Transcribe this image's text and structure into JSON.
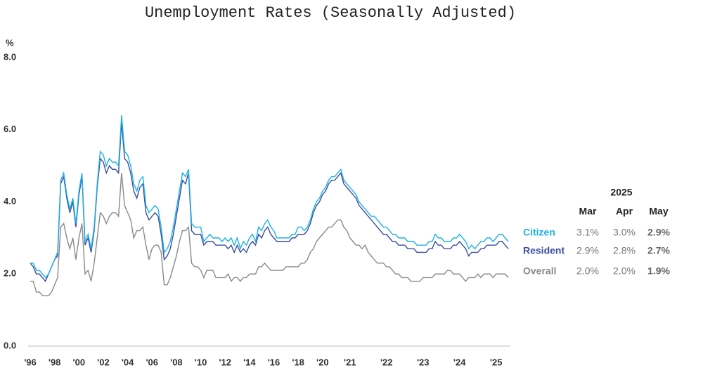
{
  "chart_data": {
    "type": "line",
    "title": "Unemployment Rates (Seasonally Adjusted)",
    "y_label": "%",
    "ylim": [
      0,
      8
    ],
    "yticks": [
      {
        "value": 0,
        "label": "0.0"
      },
      {
        "value": 2,
        "label": "2.0"
      },
      {
        "value": 4,
        "label": "4.0"
      },
      {
        "value": 6,
        "label": "6.0"
      },
      {
        "value": 8,
        "label": "8.0"
      }
    ],
    "categories": [
      "'96",
      null,
      null,
      null,
      null,
      null,
      null,
      null,
      "'98",
      null,
      null,
      null,
      null,
      null,
      null,
      null,
      "'00",
      null,
      null,
      null,
      null,
      null,
      null,
      null,
      "'02",
      null,
      null,
      null,
      null,
      null,
      null,
      null,
      "'04",
      null,
      null,
      null,
      null,
      null,
      null,
      null,
      "'06",
      null,
      null,
      null,
      null,
      null,
      null,
      null,
      "'08",
      null,
      null,
      null,
      null,
      null,
      null,
      null,
      "'10",
      null,
      null,
      null,
      null,
      null,
      null,
      null,
      "'12",
      null,
      null,
      null,
      null,
      null,
      null,
      null,
      "'14",
      null,
      null,
      null,
      null,
      null,
      null,
      null,
      "'16",
      null,
      null,
      null,
      null,
      null,
      null,
      null,
      "'18",
      null,
      null,
      null,
      null,
      null,
      null,
      null,
      "'20",
      null,
      null,
      null,
      null,
      null,
      null,
      null,
      null,
      "'21",
      null,
      null,
      null,
      null,
      null,
      null,
      null,
      null,
      null,
      null,
      null,
      "'22",
      null,
      null,
      null,
      null,
      null,
      null,
      null,
      null,
      null,
      null,
      null,
      "'23",
      null,
      null,
      null,
      null,
      null,
      null,
      null,
      null,
      null,
      null,
      null,
      "'24",
      null,
      null,
      null,
      null,
      null,
      null,
      null,
      null,
      null,
      null,
      null,
      "'25",
      null,
      null,
      null,
      null
    ],
    "series": [
      {
        "name": "Citizen",
        "color": "#1eb1e6",
        "values": [
          2.3,
          2.3,
          2.1,
          2.1,
          2.0,
          1.9,
          2.0,
          2.2,
          2.4,
          2.6,
          4.6,
          4.8,
          4.2,
          3.8,
          4.1,
          3.4,
          4.3,
          4.8,
          2.9,
          3.1,
          2.7,
          3.3,
          4.5,
          5.4,
          5.3,
          5.0,
          5.2,
          5.1,
          5.1,
          5.0,
          6.4,
          5.4,
          5.3,
          5.0,
          4.5,
          4.3,
          4.6,
          4.7,
          3.9,
          3.7,
          3.8,
          3.9,
          3.8,
          3.3,
          2.6,
          2.7,
          2.9,
          3.3,
          3.8,
          4.3,
          4.8,
          4.7,
          4.9,
          3.4,
          3.3,
          3.3,
          3.3,
          2.9,
          3.0,
          3.1,
          3.0,
          3.0,
          3.0,
          2.9,
          3.0,
          2.9,
          3.0,
          2.8,
          3.0,
          2.7,
          2.9,
          2.8,
          3.0,
          3.1,
          2.9,
          3.3,
          3.2,
          3.4,
          3.5,
          3.3,
          3.2,
          3.0,
          3.0,
          3.0,
          3.0,
          3.0,
          3.1,
          3.1,
          3.3,
          3.3,
          3.2,
          3.3,
          3.5,
          3.8,
          4.0,
          4.1,
          4.3,
          4.4,
          4.6,
          4.7,
          4.7,
          4.8,
          4.9,
          4.6,
          4.5,
          4.4,
          4.3,
          4.2,
          4.0,
          3.9,
          3.8,
          3.7,
          3.6,
          3.6,
          3.5,
          3.4,
          3.3,
          3.3,
          3.2,
          3.1,
          3.1,
          3.0,
          3.0,
          3.0,
          2.9,
          2.9,
          2.9,
          2.8,
          2.8,
          2.8,
          2.8,
          2.9,
          2.9,
          3.1,
          3.0,
          3.0,
          2.9,
          2.9,
          2.9,
          3.0,
          3.0,
          3.1,
          3.0,
          2.9,
          2.7,
          2.8,
          2.7,
          2.8,
          2.9,
          2.9,
          3.0,
          3.0,
          2.9,
          3.0,
          3.1,
          3.1,
          3.0,
          2.9
        ]
      },
      {
        "name": "Resident",
        "color": "#3a4d9f",
        "values": [
          2.3,
          2.2,
          2.0,
          2.0,
          1.9,
          1.8,
          2.0,
          2.2,
          2.4,
          2.5,
          4.5,
          4.7,
          4.1,
          3.7,
          4.0,
          3.3,
          4.2,
          4.7,
          2.8,
          3.0,
          2.6,
          3.2,
          4.4,
          5.2,
          5.1,
          4.8,
          5.0,
          4.9,
          4.9,
          4.8,
          6.2,
          5.2,
          5.1,
          4.8,
          4.3,
          4.1,
          4.4,
          4.5,
          3.7,
          3.5,
          3.6,
          3.7,
          3.6,
          3.1,
          2.4,
          2.5,
          2.7,
          3.1,
          3.6,
          4.1,
          4.6,
          4.5,
          4.8,
          3.2,
          3.1,
          3.1,
          3.1,
          2.8,
          2.9,
          2.9,
          2.9,
          2.8,
          2.8,
          2.8,
          2.8,
          2.7,
          2.8,
          2.6,
          2.8,
          2.6,
          2.7,
          2.6,
          2.8,
          2.9,
          2.8,
          3.1,
          3.0,
          3.2,
          3.3,
          3.1,
          3.0,
          2.9,
          2.9,
          2.9,
          2.9,
          2.9,
          3.0,
          3.0,
          3.1,
          3.1,
          3.1,
          3.2,
          3.4,
          3.7,
          3.9,
          4.0,
          4.2,
          4.3,
          4.5,
          4.6,
          4.6,
          4.7,
          4.8,
          4.5,
          4.4,
          4.3,
          4.2,
          4.1,
          3.9,
          3.8,
          3.7,
          3.6,
          3.5,
          3.4,
          3.3,
          3.2,
          3.1,
          3.1,
          3.0,
          2.9,
          2.9,
          2.8,
          2.8,
          2.8,
          2.7,
          2.7,
          2.7,
          2.6,
          2.6,
          2.6,
          2.6,
          2.7,
          2.7,
          2.9,
          2.8,
          2.8,
          2.7,
          2.7,
          2.7,
          2.8,
          2.8,
          2.9,
          2.8,
          2.7,
          2.5,
          2.6,
          2.6,
          2.6,
          2.7,
          2.7,
          2.8,
          2.8,
          2.8,
          2.8,
          2.9,
          2.9,
          2.8,
          2.7
        ]
      },
      {
        "name": "Overall",
        "color": "#8a8a8a",
        "values": [
          1.8,
          1.8,
          1.5,
          1.5,
          1.4,
          1.4,
          1.4,
          1.5,
          1.7,
          1.9,
          3.3,
          3.4,
          3.0,
          2.7,
          3.0,
          2.4,
          3.0,
          3.4,
          2.0,
          2.1,
          1.8,
          2.3,
          3.0,
          3.7,
          3.6,
          3.4,
          3.6,
          3.7,
          3.7,
          3.6,
          4.8,
          3.9,
          3.7,
          3.5,
          3.0,
          3.2,
          3.2,
          3.3,
          2.8,
          2.4,
          2.7,
          2.8,
          2.8,
          2.6,
          1.7,
          1.7,
          1.9,
          2.2,
          2.5,
          2.9,
          3.2,
          3.2,
          3.3,
          2.3,
          2.2,
          2.2,
          2.1,
          1.9,
          2.1,
          2.1,
          2.1,
          1.9,
          1.9,
          1.9,
          1.9,
          2.0,
          1.8,
          1.9,
          1.9,
          1.8,
          1.9,
          1.9,
          2.0,
          2.0,
          2.0,
          2.2,
          2.2,
          2.3,
          2.2,
          2.1,
          2.1,
          2.1,
          2.1,
          2.1,
          2.2,
          2.2,
          2.2,
          2.2,
          2.2,
          2.3,
          2.3,
          2.4,
          2.6,
          2.7,
          2.9,
          3.0,
          3.1,
          3.2,
          3.3,
          3.3,
          3.4,
          3.5,
          3.5,
          3.3,
          3.2,
          3.0,
          2.9,
          2.8,
          2.8,
          2.7,
          2.8,
          2.6,
          2.5,
          2.4,
          2.3,
          2.3,
          2.3,
          2.2,
          2.2,
          2.1,
          2.0,
          2.0,
          1.9,
          1.9,
          1.9,
          1.8,
          1.8,
          1.8,
          1.8,
          1.9,
          1.9,
          1.9,
          1.9,
          2.0,
          2.0,
          2.0,
          2.0,
          2.1,
          2.1,
          2.0,
          2.0,
          2.0,
          1.9,
          1.8,
          1.9,
          1.9,
          1.9,
          2.0,
          1.9,
          2.0,
          2.0,
          2.0,
          1.9,
          2.0,
          2.0,
          2.0,
          2.0,
          1.9
        ]
      }
    ],
    "table": {
      "title": "2025",
      "columns": [
        "Mar",
        "Apr",
        "May"
      ],
      "rows": [
        [
          "3.1%",
          "3.0%",
          "2.9%"
        ],
        [
          "2.9%",
          "2.8%",
          "2.7%"
        ],
        [
          "2.0%",
          "2.0%",
          "1.9%"
        ]
      ]
    }
  }
}
